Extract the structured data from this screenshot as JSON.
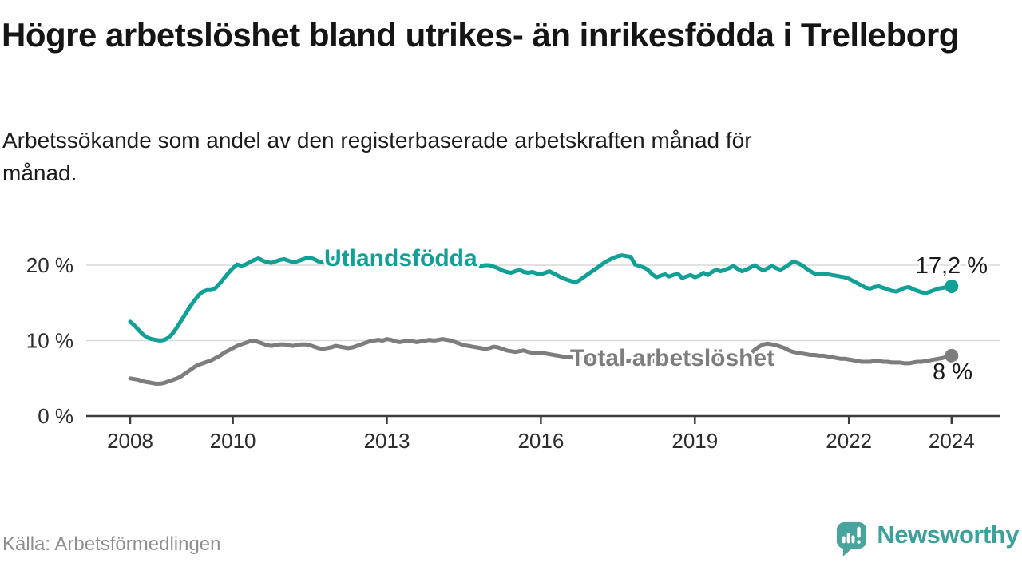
{
  "header": {
    "title": "Högre arbetslöshet bland utrikes- än inrikesfödda i Trelleborg",
    "subtitle": "Arbetssökande som andel av den registerbaserade arbetskraften månad för månad."
  },
  "footer": {
    "source": "Källa: Arbetsförmedlingen",
    "logo_text": "Newsworthy",
    "logo_icon": "newsworthy-chart-bubble-icon",
    "logo_icon_color": "#4aa49e",
    "logo_text_color": "#3ba19a"
  },
  "chart_data": {
    "type": "line",
    "title": "Högre arbetslöshet bland utrikes- än inrikesfödda i Trelleborg",
    "subtitle": "Arbetssökande som andel av den registerbaserade arbetskraften månad för månad.",
    "x_unit": "month",
    "x_start": "2008-01",
    "x_end": "2024-01",
    "ylim": [
      0,
      22.5
    ],
    "grid": true,
    "grid_values": [
      10,
      20
    ],
    "axis_color": "#3c3c3c",
    "grid_color": "#d9d9d9",
    "y_ticks": [
      {
        "value": 0,
        "label": "0 %"
      },
      {
        "value": 10,
        "label": "10 %"
      },
      {
        "value": 20,
        "label": "20 %"
      }
    ],
    "x_ticks": [
      {
        "year": 2008,
        "label": "2008"
      },
      {
        "year": 2010,
        "label": "2010"
      },
      {
        "year": 2013,
        "label": "2013"
      },
      {
        "year": 2016,
        "label": "2016"
      },
      {
        "year": 2019,
        "label": "2019"
      },
      {
        "year": 2022,
        "label": "2022"
      },
      {
        "year": 2024,
        "label": "2024"
      }
    ],
    "series": [
      {
        "name": "Utlandsfödda",
        "color": "#11a096",
        "end_value": 17.2,
        "end_label": "17,2 %",
        "values": [
          12.5,
          12.0,
          11.4,
          10.8,
          10.4,
          10.2,
          10.1,
          10.0,
          10.1,
          10.4,
          11.0,
          11.8,
          12.7,
          13.6,
          14.5,
          15.3,
          16.0,
          16.5,
          16.7,
          16.7,
          17.0,
          17.6,
          18.3,
          19.0,
          19.6,
          20.1,
          19.9,
          20.1,
          20.4,
          20.7,
          20.9,
          20.6,
          20.4,
          20.3,
          20.5,
          20.7,
          20.8,
          20.6,
          20.4,
          20.5,
          20.7,
          20.9,
          21.0,
          20.8,
          20.5,
          20.4,
          20.6,
          20.8,
          21.0,
          21.1,
          20.9,
          20.6,
          20.4,
          20.3,
          20.4,
          20.6,
          20.8,
          20.7,
          20.5,
          20.4,
          20.3,
          20.4,
          20.5,
          20.4,
          20.2,
          20.1,
          20.2,
          20.4,
          20.5,
          20.3,
          20.2,
          20.1,
          20.2,
          20.3,
          20.4,
          20.2,
          20.0,
          19.9,
          20.0,
          20.1,
          20.2,
          20.0,
          19.9,
          20.0,
          20.0,
          19.8,
          19.6,
          19.3,
          19.1,
          19.0,
          19.2,
          19.4,
          19.1,
          19.0,
          19.1,
          18.9,
          18.8,
          19.0,
          19.2,
          18.9,
          18.6,
          18.3,
          18.1,
          17.9,
          17.7,
          18.0,
          18.4,
          18.8,
          19.2,
          19.6,
          20.0,
          20.4,
          20.7,
          21.0,
          21.2,
          21.3,
          21.2,
          21.1,
          20.1,
          19.9,
          19.7,
          19.4,
          18.8,
          18.4,
          18.6,
          18.8,
          18.5,
          18.7,
          18.9,
          18.3,
          18.5,
          18.7,
          18.4,
          18.6,
          19.0,
          18.7,
          19.1,
          19.4,
          19.2,
          19.4,
          19.6,
          19.9,
          19.5,
          19.2,
          19.4,
          19.7,
          20.0,
          19.6,
          19.3,
          19.6,
          19.9,
          19.6,
          19.4,
          19.7,
          20.1,
          20.5,
          20.3,
          20.0,
          19.6,
          19.2,
          18.9,
          18.8,
          18.9,
          18.8,
          18.7,
          18.6,
          18.5,
          18.4,
          18.2,
          17.9,
          17.6,
          17.3,
          17.0,
          16.9,
          17.1,
          17.2,
          17.0,
          16.8,
          16.6,
          16.5,
          16.7,
          17.0,
          17.1,
          16.8,
          16.6,
          16.4,
          16.3,
          16.5,
          16.7,
          16.9,
          17.0,
          17.1,
          17.2
        ]
      },
      {
        "name": "Total arbetslöshet",
        "color": "#7d7d7d",
        "end_value": 8.0,
        "end_label": "8 %",
        "values": [
          5.0,
          4.9,
          4.8,
          4.6,
          4.5,
          4.4,
          4.3,
          4.3,
          4.4,
          4.6,
          4.8,
          5.0,
          5.3,
          5.7,
          6.1,
          6.5,
          6.8,
          7.0,
          7.2,
          7.4,
          7.7,
          8.0,
          8.4,
          8.7,
          9.0,
          9.3,
          9.5,
          9.7,
          9.9,
          10.0,
          9.8,
          9.6,
          9.4,
          9.3,
          9.4,
          9.5,
          9.5,
          9.4,
          9.3,
          9.4,
          9.5,
          9.5,
          9.4,
          9.2,
          9.0,
          8.9,
          9.0,
          9.1,
          9.3,
          9.2,
          9.1,
          9.0,
          9.1,
          9.3,
          9.5,
          9.7,
          9.9,
          10.0,
          10.1,
          10.0,
          10.2,
          10.1,
          9.9,
          9.8,
          9.9,
          10.0,
          9.9,
          9.8,
          9.9,
          10.0,
          10.1,
          10.0,
          10.1,
          10.2,
          10.1,
          10.0,
          9.8,
          9.6,
          9.4,
          9.3,
          9.2,
          9.1,
          9.0,
          8.9,
          9.0,
          9.2,
          9.1,
          8.9,
          8.7,
          8.6,
          8.5,
          8.6,
          8.7,
          8.5,
          8.4,
          8.3,
          8.4,
          8.3,
          8.2,
          8.1,
          8.0,
          7.9,
          7.8,
          7.8,
          7.7,
          7.6,
          7.6,
          7.5,
          7.5,
          7.5,
          7.4,
          7.4,
          7.5,
          7.5,
          7.4,
          7.4,
          7.3,
          7.3,
          7.4,
          7.4,
          7.4,
          7.3,
          7.3,
          7.2,
          7.2,
          7.3,
          7.3,
          7.2,
          7.2,
          7.3,
          7.3,
          7.4,
          7.4,
          7.4,
          7.5,
          7.5,
          7.4,
          7.5,
          7.6,
          7.6,
          7.5,
          7.6,
          7.7,
          7.8,
          8.0,
          8.3,
          8.8,
          9.2,
          9.5,
          9.6,
          9.5,
          9.4,
          9.2,
          9.0,
          8.7,
          8.5,
          8.4,
          8.3,
          8.2,
          8.1,
          8.1,
          8.0,
          8.0,
          7.9,
          7.8,
          7.7,
          7.6,
          7.6,
          7.5,
          7.4,
          7.3,
          7.2,
          7.2,
          7.2,
          7.3,
          7.3,
          7.2,
          7.2,
          7.1,
          7.1,
          7.1,
          7.0,
          7.0,
          7.1,
          7.2,
          7.2,
          7.3,
          7.4,
          7.5,
          7.6,
          7.7,
          7.9,
          8.0
        ]
      }
    ]
  }
}
